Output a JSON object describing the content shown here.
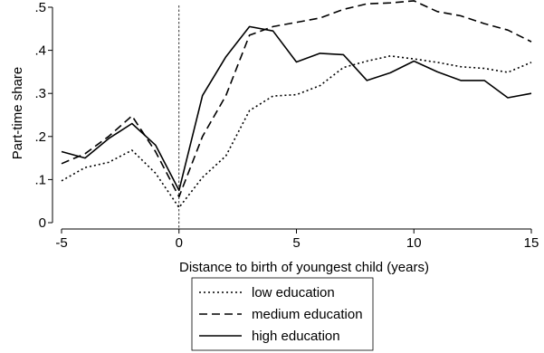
{
  "chart_data": {
    "type": "line",
    "title": "",
    "xlabel": "Distance to birth of youngest child (years)",
    "ylabel": "Part-time share",
    "xlim": [
      -5,
      15
    ],
    "ylim": [
      0,
      0.5
    ],
    "xticks": [
      -5,
      0,
      5,
      10,
      15
    ],
    "xtick_labels": [
      "-5",
      "0",
      "5",
      "10",
      "15"
    ],
    "yticks": [
      0,
      0.1,
      0.2,
      0.3,
      0.4,
      0.5
    ],
    "ytick_labels": [
      "0",
      ".1",
      ".2",
      ".3",
      ".4",
      ".5"
    ],
    "grid": false,
    "reference_line_x": 0,
    "legend_position": "bottom",
    "x": [
      -5,
      -4,
      -3,
      -2,
      -1,
      0,
      1,
      2,
      3,
      4,
      5,
      6,
      7,
      8,
      9,
      10,
      11,
      12,
      13,
      14,
      15
    ],
    "series": [
      {
        "name": "low education",
        "line_style": "dotted",
        "values": [
          0.097,
          0.128,
          0.14,
          0.168,
          0.115,
          0.035,
          0.105,
          0.155,
          0.26,
          0.294,
          0.297,
          0.318,
          0.36,
          0.375,
          0.387,
          0.38,
          0.372,
          0.362,
          0.358,
          0.349,
          0.372
        ]
      },
      {
        "name": "medium education",
        "line_style": "dashed",
        "values": [
          0.137,
          0.16,
          0.2,
          0.248,
          0.165,
          0.06,
          0.2,
          0.295,
          0.435,
          0.455,
          0.465,
          0.475,
          0.495,
          0.508,
          0.51,
          0.515,
          0.49,
          0.48,
          0.462,
          0.447,
          0.42
        ]
      },
      {
        "name": "high education",
        "line_style": "solid",
        "values": [
          0.165,
          0.15,
          0.195,
          0.23,
          0.18,
          0.075,
          0.295,
          0.385,
          0.455,
          0.445,
          0.373,
          0.393,
          0.39,
          0.33,
          0.348,
          0.375,
          0.35,
          0.33,
          0.33,
          0.29,
          0.3
        ]
      }
    ]
  }
}
